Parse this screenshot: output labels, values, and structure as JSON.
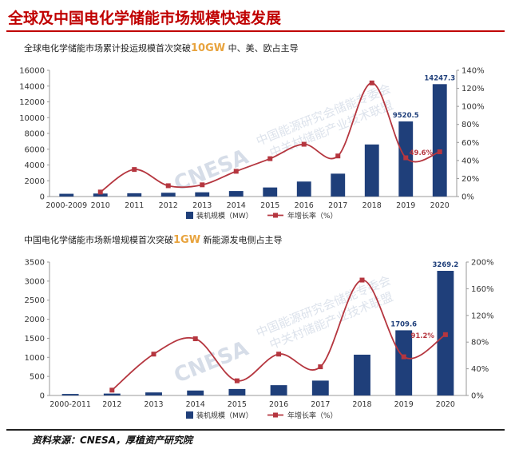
{
  "header": {
    "title": "全球及中国电化学储能市场规模快速发展"
  },
  "source": "资料来源：CNESA，厚植资产研究院",
  "watermark": {
    "logo": "CNESA",
    "cn_line1": "中国能源研究会储能专委会",
    "cn_line2": "中关村储能产业技术联盟"
  },
  "colors": {
    "bar": "#1f3f7a",
    "line": "#b5363f",
    "axis": "#999999",
    "accent": "#c00000",
    "highlight": "#e8a33d"
  },
  "chart_data": [
    {
      "type": "bar",
      "title_pre": "全球电化学储能市场累计投运规模首次突破",
      "title_hl": "10GW",
      "title_post": "  中、美、欧占主导",
      "categories": [
        "2000-2009",
        "2010",
        "2011",
        "2012",
        "2013",
        "2014",
        "2015",
        "2016",
        "2017",
        "2018",
        "2019",
        "2020"
      ],
      "series": [
        {
          "name": "装机规模（MW）",
          "axis": "left",
          "values": [
            350,
            380,
            420,
            480,
            540,
            700,
            1150,
            1900,
            2900,
            6600,
            9520.5,
            14247.3
          ]
        },
        {
          "name": "年增长率（%）",
          "axis": "right",
          "values": [
            null,
            5,
            30,
            12,
            13,
            28,
            42,
            58,
            45,
            126,
            43,
            49.6
          ]
        }
      ],
      "bar_labels": [
        {
          "index": 10,
          "text": "9520.5"
        },
        {
          "index": 11,
          "text": "14247.3"
        }
      ],
      "line_labels": [
        {
          "index": 11,
          "text": "49.6%"
        }
      ],
      "ylim_left": [
        0,
        16000
      ],
      "yticks_left": [
        "0",
        "2000",
        "4000",
        "6000",
        "8000",
        "10000",
        "12000",
        "14000",
        "16000"
      ],
      "ylim_right": [
        0,
        140
      ],
      "yticks_right": [
        "0%",
        "20%",
        "40%",
        "60%",
        "80%",
        "100%",
        "120%",
        "140%"
      ],
      "legend": [
        "装机规模（MW）",
        "年增长率（%）"
      ]
    },
    {
      "type": "bar",
      "title_pre": "中国电化学储能市场新增规模首次突破",
      "title_hl": "1GW",
      "title_post": "  新能源发电侧占主导",
      "categories": [
        "2000-2011",
        "2012",
        "2013",
        "2014",
        "2015",
        "2016",
        "2017",
        "2018",
        "2019",
        "2020"
      ],
      "series": [
        {
          "name": "装机规模（MW）",
          "axis": "left",
          "values": [
            40,
            50,
            80,
            130,
            170,
            270,
            390,
            1070,
            1709.6,
            3269.2
          ]
        },
        {
          "name": "年增长率（%）",
          "axis": "right",
          "values": [
            null,
            8,
            62,
            85,
            22,
            62,
            43,
            173,
            58,
            91.2
          ]
        }
      ],
      "bar_labels": [
        {
          "index": 8,
          "text": "1709.6"
        },
        {
          "index": 9,
          "text": "3269.2"
        }
      ],
      "line_labels": [
        {
          "index": 9,
          "text": "91.2%"
        }
      ],
      "ylim_left": [
        0,
        3500
      ],
      "yticks_left": [
        "0",
        "500",
        "1000",
        "1500",
        "2000",
        "2500",
        "3000",
        "3500"
      ],
      "ylim_right": [
        0,
        200
      ],
      "yticks_right": [
        "0%",
        "40%",
        "80%",
        "120%",
        "160%",
        "200%"
      ],
      "legend": [
        "装机规模（MW）",
        "年增长率（%）"
      ]
    }
  ]
}
